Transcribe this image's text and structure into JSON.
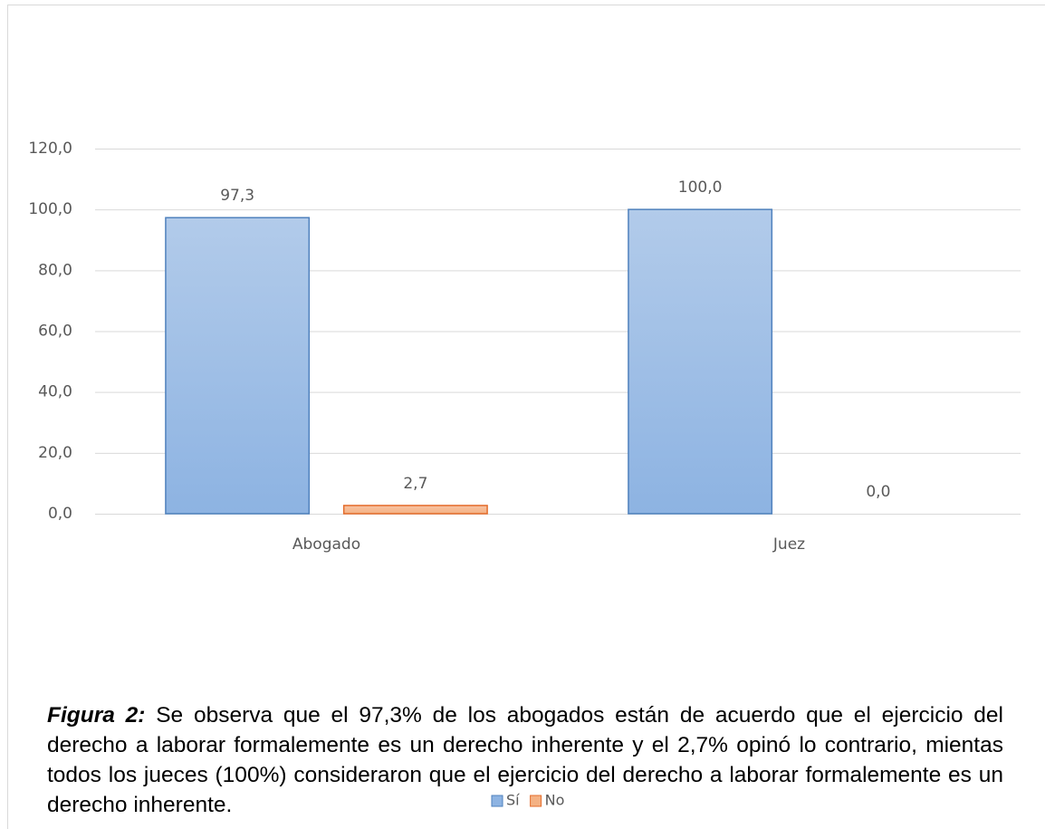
{
  "chart_data": {
    "type": "bar",
    "categories": [
      "Abogado",
      "Juez"
    ],
    "series": [
      {
        "name": "Sí",
        "color": "#8db3e2",
        "values": [
          97.3,
          100.0
        ],
        "value_labels": [
          "97,3",
          "100,0"
        ]
      },
      {
        "name": "No",
        "color": "#f4b183",
        "values": [
          2.7,
          0.0
        ],
        "value_labels": [
          "2,7",
          "0,0"
        ]
      }
    ],
    "ylim": [
      0,
      120
    ],
    "yticks": [
      {
        "value": 0,
        "label": "0,0"
      },
      {
        "value": 20,
        "label": "20,0"
      },
      {
        "value": 40,
        "label": "40,0"
      },
      {
        "value": 60,
        "label": "60,0"
      },
      {
        "value": 80,
        "label": "80,0"
      },
      {
        "value": 100,
        "label": "100,0"
      },
      {
        "value": 120,
        "label": "120,0"
      }
    ],
    "grid": true,
    "legend": "bottom",
    "caption_label": "Figura 2:",
    "caption": "Se observa que el 97,3% de los abogados están de acuerdo que el ejercicio del derecho a laborar formalemente es un derecho inherente y el 2,7% opinó lo contrario, mientas todos los jueces (100%) consideraron que el ejercicio del derecho a laborar formalemente es un derecho inherente."
  }
}
